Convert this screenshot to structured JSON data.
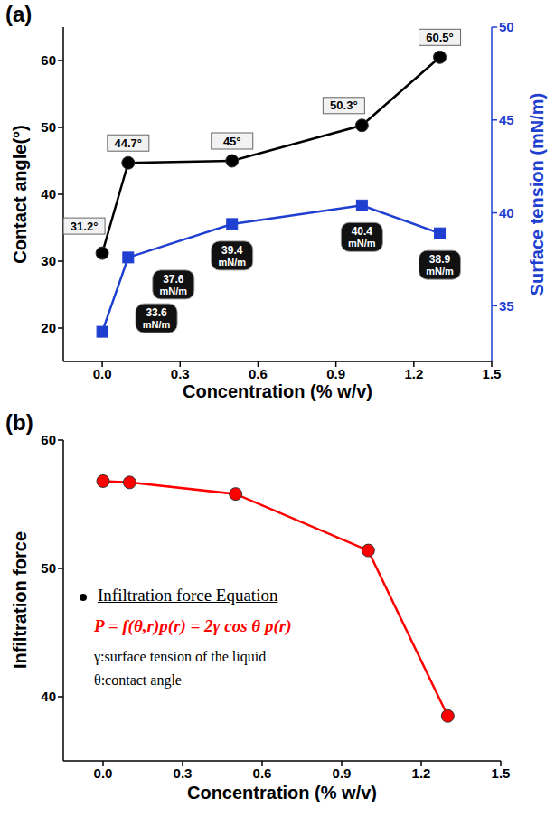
{
  "chart_data": [
    {
      "type": "line",
      "title": "(a)",
      "x": [
        0,
        0.1,
        0.5,
        1,
        1.3
      ],
      "xlim": [
        -0.15,
        1.5
      ],
      "xticks": [
        {
          "value": 0,
          "label": "0.0"
        },
        0.3,
        0.6,
        0.9,
        1.2,
        1.5
      ],
      "xlabel": "Concentration (% w/v)",
      "ylabel": "Contact angle(°)",
      "ylim": [
        15,
        65
      ],
      "yticks": [
        20,
        30,
        40,
        50,
        60
      ],
      "y2label": "Surface tension (mN/m)",
      "y2lim": [
        32,
        50
      ],
      "y2ticks": [
        35,
        40,
        45,
        50
      ],
      "grid": false,
      "data_labels": true,
      "series": [
        {
          "color": "#000000",
          "marker": "circle",
          "line_style": "solid",
          "values": [
            31.2,
            44.7,
            45,
            50.3,
            60.5
          ],
          "value_labels": [
            "31.2°",
            "44.7°",
            "45°",
            "50.3°",
            "60.5°"
          ]
        },
        {
          "color": "#1f3fd0",
          "marker": "square",
          "line_style": "solid",
          "axis": "y2",
          "values": [
            33.6,
            37.6,
            39.4,
            40.4,
            38.9
          ],
          "value_labels": [
            "33.6 mN/m",
            "37.6 mN/m",
            "39.4 mN/m",
            "40.4 mN/m",
            "38.9 mN/m"
          ]
        }
      ]
    },
    {
      "type": "line",
      "title": "(b)",
      "x": [
        0,
        0.1,
        0.5,
        1,
        1.3
      ],
      "xlim": [
        -0.15,
        1.5
      ],
      "xticks": [
        {
          "value": 0,
          "label": "0.0"
        },
        0.3,
        0.6,
        0.9,
        1.2,
        1.5
      ],
      "xlabel": "Concentration (% w/v)",
      "ylabel": "Infiltration force",
      "ylim": [
        35,
        60
      ],
      "yticks": [
        40,
        50,
        60
      ],
      "grid": false,
      "color": "#ff0000",
      "marker": "circle",
      "line_style": "solid",
      "values": [
        56.8,
        56.7,
        55.8,
        51.4,
        38.5
      ],
      "annotations": [
        "Infiltration force Equation",
        "P = f(θ,r)p(r) = 2γ cos θ p(r)",
        "γ:surface tension of the liquid",
        "θ:contact angle"
      ]
    }
  ]
}
